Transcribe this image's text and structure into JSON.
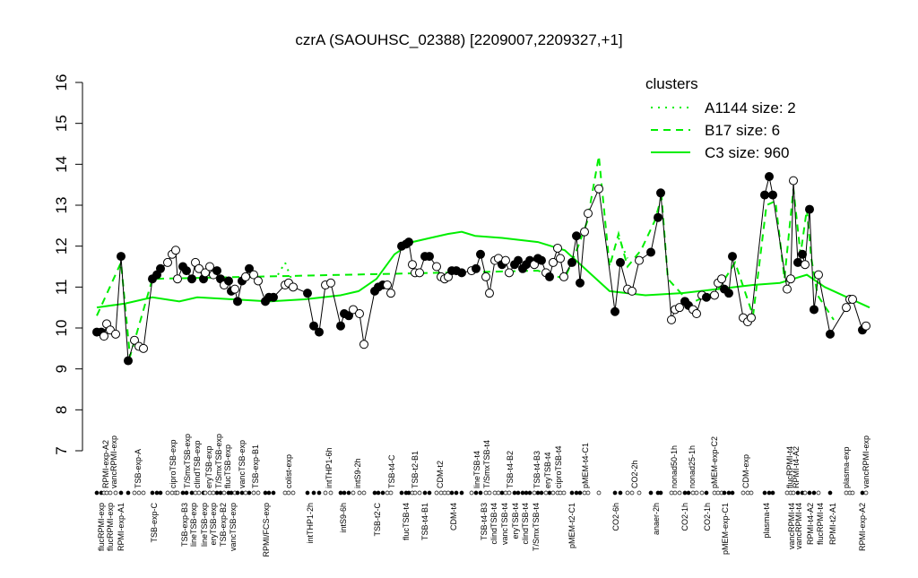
{
  "chart_data": {
    "type": "scatter",
    "title": "czrA (SAOUHSC_02388) [2209007,2209327,+1]",
    "ylim": [
      7,
      16
    ],
    "yticks": [
      7,
      8,
      9,
      10,
      11,
      12,
      13,
      14,
      15,
      16
    ],
    "xlim": [
      0,
      880
    ],
    "points": {
      "x": [
        8,
        13,
        16,
        19,
        23,
        29,
        35,
        43,
        50,
        55,
        60,
        70,
        75,
        79,
        87,
        92,
        96,
        98,
        104,
        108,
        114,
        118,
        122,
        127,
        129,
        134,
        138,
        142,
        146,
        150,
        155,
        158,
        162,
        165,
        170,
        174,
        178,
        183,
        188,
        196,
        200,
        205,
        218,
        222,
        227,
        243,
        250,
        256,
        263,
        269,
        280,
        284,
        289,
        294,
        301,
        306,
        318,
        322,
        327,
        332,
        336,
        348,
        353,
        356,
        360,
        363,
        368,
        374,
        379,
        387,
        392,
        396,
        400,
        404,
        409,
        415,
        426,
        431,
        436,
        442,
        446,
        452,
        456,
        460,
        464,
        468,
        474,
        478,
        483,
        487,
        491,
        496,
        500,
        504,
        509,
        513,
        517,
        522,
        525,
        529,
        538,
        543,
        547,
        552,
        556,
        568,
        586,
        592,
        600,
        605,
        613,
        626,
        634,
        637,
        649,
        653,
        658,
        664,
        668,
        673,
        677,
        683,
        688,
        697,
        701,
        705,
        708,
        713,
        717,
        729,
        734,
        738,
        753,
        758,
        762,
        778,
        782,
        785,
        790,
        795,
        798,
        803,
        808,
        813,
        826,
        844,
        848,
        851,
        862,
        866
      ],
      "values": [
        9.9,
        9.9,
        9.8,
        10.1,
        9.95,
        9.85,
        11.75,
        9.2,
        9.7,
        9.55,
        9.5,
        11.2,
        11.3,
        11.45,
        11.6,
        11.8,
        11.9,
        11.2,
        11.5,
        11.4,
        11.2,
        11.6,
        11.45,
        11.2,
        11.35,
        11.5,
        11.3,
        11.4,
        11.2,
        11.05,
        11.15,
        10.9,
        10.95,
        10.65,
        11.15,
        11.25,
        11.45,
        11.3,
        11.15,
        10.65,
        10.75,
        10.75,
        11.05,
        11.1,
        11.0,
        10.85,
        10.05,
        9.9,
        11.05,
        11.1,
        10.05,
        10.35,
        10.3,
        10.45,
        10.35,
        9.6,
        10.9,
        11.0,
        11.05,
        11.05,
        10.85,
        12.0,
        12.05,
        12.1,
        11.55,
        11.35,
        11.35,
        11.75,
        11.75,
        11.5,
        11.25,
        11.2,
        11.25,
        11.4,
        11.4,
        11.35,
        11.4,
        11.45,
        11.8,
        11.25,
        10.85,
        11.65,
        11.7,
        11.55,
        11.65,
        11.35,
        11.55,
        11.65,
        11.45,
        11.55,
        11.65,
        11.55,
        11.7,
        11.65,
        11.35,
        11.25,
        11.6,
        11.95,
        11.7,
        11.25,
        11.6,
        12.25,
        11.1,
        12.35,
        12.8,
        13.4,
        10.4,
        11.6,
        10.95,
        10.9,
        11.65,
        11.85,
        12.7,
        13.3,
        10.2,
        10.45,
        10.5,
        10.65,
        10.55,
        10.45,
        10.35,
        10.8,
        10.75,
        10.8,
        11.1,
        11.2,
        10.95,
        10.85,
        11.75,
        10.25,
        10.15,
        10.25,
        13.25,
        13.7,
        13.25,
        10.95,
        11.2,
        13.6,
        11.6,
        11.8,
        11.55,
        12.9,
        10.45,
        11.3,
        9.85,
        10.5,
        10.7,
        10.7,
        9.95,
        10.05
      ],
      "filled": [
        true,
        true,
        false,
        false,
        false,
        false,
        true,
        true,
        false,
        false,
        false,
        true,
        true,
        true,
        false,
        false,
        false,
        false,
        true,
        true,
        true,
        false,
        false,
        true,
        false,
        false,
        false,
        true,
        true,
        false,
        true,
        true,
        false,
        true,
        true,
        false,
        true,
        false,
        false,
        true,
        true,
        true,
        false,
        false,
        false,
        true,
        true,
        true,
        false,
        false,
        true,
        true,
        true,
        false,
        false,
        false,
        true,
        true,
        true,
        false,
        false,
        true,
        true,
        true,
        false,
        false,
        false,
        true,
        true,
        false,
        false,
        false,
        false,
        true,
        true,
        true,
        false,
        true,
        true,
        false,
        false,
        false,
        false,
        true,
        false,
        false,
        true,
        true,
        true,
        true,
        true,
        false,
        true,
        true,
        false,
        true,
        false,
        false,
        false,
        false,
        true,
        true,
        true,
        false,
        false,
        false,
        true,
        true,
        false,
        false,
        false,
        true,
        true,
        true,
        false,
        false,
        false,
        true,
        true,
        false,
        false,
        false,
        true,
        false,
        false,
        false,
        true,
        true,
        true,
        false,
        false,
        false,
        true,
        true,
        true,
        false,
        false,
        false,
        true,
        true,
        false,
        true,
        true,
        false,
        true,
        false,
        false,
        false,
        true,
        false
      ]
    },
    "series": [
      {
        "name": "A1144 size: 2",
        "color": "#00ee00",
        "dash": "dotted",
        "x": [
          210,
          218,
          225,
          null,
          590,
          600
        ],
        "values": [
          11.3,
          11.6,
          11.2,
          null,
          12.2,
          11.7
        ]
      },
      {
        "name": "B17 size: 6",
        "color": "#00ee00",
        "dash": "dashed",
        "x": [
          8,
          35,
          45,
          70,
          500,
          530,
          545,
          555,
          568,
          580,
          590,
          600,
          615,
          630,
          638,
          645,
          670,
          700,
          720,
          740,
          755,
          765,
          775,
          785,
          793,
          800,
          805,
          812,
          830
        ],
        "values": [
          10.3,
          11.6,
          9.3,
          11.2,
          11.4,
          11.2,
          12.0,
          12.6,
          14.2,
          11.5,
          12.3,
          11.5,
          11.9,
          12.6,
          13.2,
          11.2,
          10.6,
          10.9,
          11.6,
          10.3,
          13.0,
          13.1,
          11.2,
          13.4,
          11.8,
          12.9,
          11.7,
          10.8,
          10.2
        ]
      },
      {
        "name": "C3 size: 960",
        "color": "#00ee00",
        "dash": "solid",
        "x": [
          8,
          40,
          70,
          100,
          120,
          160,
          200,
          240,
          280,
          300,
          320,
          340,
          360,
          380,
          400,
          415,
          430,
          460,
          500,
          530,
          550,
          580,
          620,
          660,
          700,
          740,
          770,
          800,
          820,
          850,
          870
        ],
        "values": [
          10.5,
          10.6,
          10.75,
          10.65,
          10.75,
          10.7,
          10.65,
          10.7,
          10.8,
          10.9,
          11.2,
          11.8,
          12.1,
          12.2,
          12.3,
          12.35,
          12.25,
          12.2,
          12.1,
          11.9,
          11.5,
          10.9,
          10.8,
          10.85,
          10.95,
          11.05,
          11.1,
          11.3,
          11.0,
          10.7,
          10.5
        ]
      }
    ],
    "legend_title": "clusters",
    "legend_position": "top-right",
    "labels_top": {
      "x": [
        18,
        27,
        54,
        93,
        109,
        120,
        133,
        144,
        154,
        170,
        185,
        222,
        267,
        299,
        337,
        363,
        391,
        432,
        443,
        469,
        499,
        511,
        523,
        553,
        608,
        652,
        672,
        697,
        732,
        781,
        788,
        844,
        866
      ],
      "text": [
        "RPMI-exp-A2",
        "vancRPMI-exp",
        "TSB-exp-A",
        "ciproTSB-exp",
        "T/SmxTSB-exp",
        "clindTSB-exp",
        "eryTSB-exp",
        "T/SmxTSB-exp",
        "flucTSB-exp",
        "vancTSB-exp",
        "TSB-exp-B1",
        "colist-exp",
        "intTHP1-6h",
        "intS9-2h",
        "TSB-t4-C",
        "TSB-t2-B1",
        "CDM-t2",
        "lineTSB-t4",
        "T/SmxTSB-t4",
        "TSB-t4-B2",
        "TSB-t4-B3",
        "eryTSB-t4",
        "ciproTSB-t4",
        "pMEM-t4-C1",
        "CO2-2h",
        "nonad50-1h",
        "nonad25-1h",
        "pMEM-exp-C2",
        "CDM-exp",
        "flucRPMI-t4",
        "RPMI-t4-A2",
        "plasma-exp",
        "vancRPMI-exp"
      ]
    },
    "labels_bottom": {
      "x": [
        13,
        23,
        35,
        72,
        106,
        116,
        128,
        138,
        149,
        160,
        197,
        246,
        283,
        321,
        353,
        374,
        406,
        440,
        451,
        463,
        475,
        486,
        498,
        538,
        587,
        632,
        664,
        689,
        709,
        755,
        783,
        791,
        804,
        815,
        829,
        862
      ],
      "text": [
        "flucRPMI-exp",
        "flucRPMI-exp",
        "RPMI-exp-A1",
        "TSB-exp-C",
        "TSB-exp-B3",
        "lineTSB-exp",
        "lineTSB-exp",
        "eryTSB-exp",
        "TSB-exp-B2",
        "vancTSB-exp",
        "RPMI/FCS-exp",
        "intTHP1-2h",
        "intS9-6h",
        "TSB-t2-C",
        "flucTSB-t4",
        "TSB-t4-B1",
        "CDM-t4",
        "TSB-t4-B3",
        "clindTSB-t4",
        "vancTSB-t4",
        "eryTSB-t4",
        "clindTSB-t4",
        "T/SmxTSB-t4",
        "pMEM-t2-C1",
        "CO2-6h",
        "anaer-2h",
        "CO2-1h",
        "CO2-1h",
        "pMEM-exp-C1",
        "plasma-t4",
        "vancRPMI-t4",
        "vancRPMI-t4",
        "RPMI-t4-A2",
        "flucRPMI-t4",
        "RPMI-t2-A1",
        "RPMI-exp-A2"
      ]
    }
  }
}
